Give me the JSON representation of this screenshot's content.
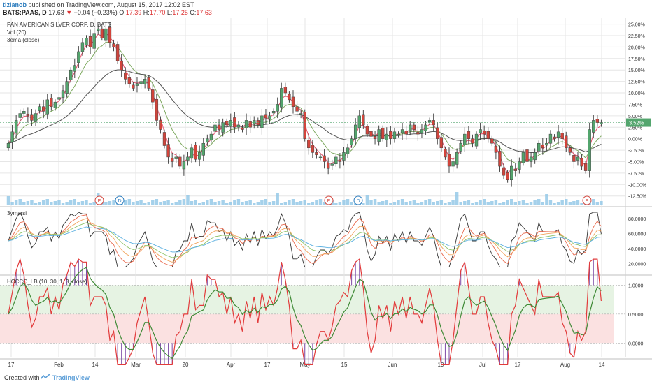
{
  "header": {
    "user": "tizianob",
    "published": "published on TradingView.com, August 15, 2017 12:02 EST",
    "symbol": "BATS:PAAS, D",
    "last": "17.63",
    "change": "−0.04 (−0.23%)",
    "o_label": "O:",
    "o": "17.39",
    "h_label": "H:",
    "h": "17.70",
    "l_label": "L:",
    "l": "17.25",
    "c_label": "C:",
    "c": "17.63"
  },
  "legend": {
    "title": "PAN AMERICAN SILVER CORP, D, BATS",
    "vol": "Vol (20)",
    "ema": "3ema (close)",
    "pane2": "3ymarsi",
    "pane3": "HCCCO_LB (10, 30, 1, 3, close)"
  },
  "footer": {
    "created": "Created with",
    "brand": "TradingView"
  },
  "colors": {
    "up": "#53a56d",
    "down": "#d2443b",
    "ema_fast": "#e4526b",
    "ema_mid": "#7ca85e",
    "ema_slow": "#555555",
    "volume": "#8ec6e6",
    "grid": "#e6e6e6",
    "rsi_black": "#333333",
    "rsi_red": "#e8684c",
    "rsi_orange": "#f2a45c",
    "rsi_green": "#8fc46a",
    "rsi_blue": "#5aafe0",
    "osc_red": "#e23b3b",
    "osc_green": "#3f8a36",
    "hist": "#7d4aa6"
  },
  "chart_data": [
    {
      "type": "candlestick",
      "unit": "percent",
      "y_ticks": [
        "25.00%",
        "22.50%",
        "20.00%",
        "17.50%",
        "15.00%",
        "12.50%",
        "10.00%",
        "7.50%",
        "5.00%",
        "2.50%",
        "0.00%",
        "-2.50%",
        "-5.00%",
        "-7.50%",
        "-10.00%",
        "-12.50%"
      ],
      "ylim": [
        -13,
        26
      ],
      "last_label": "3.52%",
      "x_ticks": [
        "17",
        "Feb",
        "14",
        "Mar",
        "20",
        "Apr",
        "17",
        "May",
        "15",
        "Jun",
        "19",
        "Jul",
        "17",
        "Aug",
        "14"
      ],
      "close": [
        -1,
        1.5,
        4,
        5.5,
        6,
        5,
        4,
        5.5,
        7,
        6,
        8.5,
        7,
        8,
        9,
        10.5,
        12.5,
        15,
        16,
        19,
        21,
        22,
        20,
        23,
        24,
        22,
        24,
        21,
        20,
        17,
        15,
        13,
        12,
        11,
        12,
        12.5,
        13,
        11,
        8,
        4,
        2,
        -1.5,
        -4,
        -5,
        -4,
        -6,
        -5,
        -4,
        -2,
        -4.5,
        -3,
        -1,
        0,
        1,
        3,
        2,
        3.5,
        3,
        4,
        2.5,
        3,
        2,
        4,
        2.5,
        4,
        3,
        5,
        4.5,
        5,
        6,
        7.5,
        11,
        10,
        8.5,
        7,
        6,
        5.5,
        0,
        -2,
        -3,
        -3.5,
        -4,
        -5,
        -6.5,
        -5.5,
        -4,
        -5,
        -3,
        -2,
        0,
        3,
        5,
        3,
        1,
        0.5,
        0,
        2,
        0,
        1,
        0,
        1.5,
        1,
        2,
        1,
        3,
        2,
        1,
        2,
        3,
        4,
        3,
        0,
        -2,
        -4,
        -6,
        -5,
        -3,
        -1,
        1,
        0,
        -1,
        1,
        2,
        1,
        0,
        -1,
        -3,
        -6,
        -8,
        -9,
        -6,
        -7,
        -5,
        -3,
        -5,
        -4,
        -3,
        -1,
        -2,
        -1,
        1,
        0,
        1.5,
        0,
        -2,
        -3,
        -5,
        -4,
        -6,
        -7,
        2,
        4,
        3.5,
        3.52
      ],
      "series": [
        {
          "name": "3ema (close)",
          "note": "three moving averages"
        }
      ]
    },
    {
      "type": "line",
      "title": "3ymarsi",
      "y_ticks": [
        "80.0000",
        "60.0000",
        "40.0000",
        "20.0000"
      ],
      "ylim": [
        10,
        90
      ],
      "bands": [
        70,
        30
      ]
    },
    {
      "type": "line",
      "title": "HCCCO_LB (10, 30, 1, 3, close)",
      "y_ticks": [
        "1.0000",
        "0.5000",
        "0.0000"
      ],
      "ylim": [
        -0.25,
        1.15
      ],
      "zones": [
        {
          "from": 0.5,
          "to": 1.0,
          "color": "#e6f3e3"
        },
        {
          "from": 0.0,
          "to": 0.5,
          "color": "#fbe1e1"
        }
      ]
    }
  ]
}
